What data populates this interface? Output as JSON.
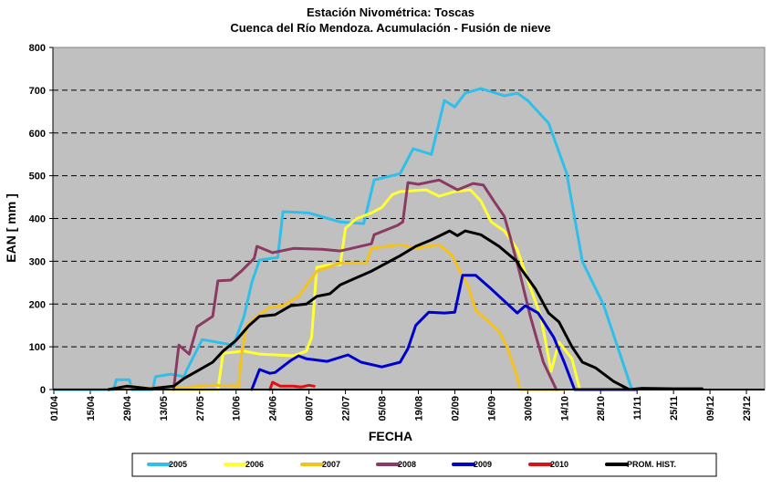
{
  "chart_data": {
    "type": "line",
    "title": "Estación Nivométrica: Toscas",
    "subtitle": "Cuenca del Río Mendoza. Acumulación - Fusión de nieve",
    "xlabel": "FECHA",
    "ylabel": "EAN [ mm ]",
    "ylim": [
      0,
      800
    ],
    "yticks": [
      0,
      100,
      200,
      300,
      400,
      500,
      600,
      700,
      800
    ],
    "xticks": [
      "01/04",
      "15/04",
      "29/04",
      "13/05",
      "27/05",
      "10/06",
      "24/06",
      "08/07",
      "22/07",
      "05/08",
      "19/08",
      "02/09",
      "16/09",
      "30/09",
      "14/10",
      "28/10",
      "11/11",
      "25/11",
      "09/12",
      "23/12"
    ],
    "xlim": [
      "01/04",
      "30/12"
    ],
    "grid": "horizontal dashed",
    "plot_background": "#c0c0c0",
    "legend_position": "bottom",
    "series": [
      {
        "name": "2005",
        "color": "#2fbfea",
        "points": [
          [
            "01/04",
            0
          ],
          [
            "24/04",
            0
          ],
          [
            "25/04",
            23
          ],
          [
            "30/04",
            23
          ],
          [
            "01/05",
            0
          ],
          [
            "09/05",
            0
          ],
          [
            "10/05",
            30
          ],
          [
            "16/05",
            36
          ],
          [
            "21/05",
            30
          ],
          [
            "22/05",
            45
          ],
          [
            "28/05",
            117
          ],
          [
            "09/06",
            104
          ],
          [
            "13/06",
            170
          ],
          [
            "16/06",
            250
          ],
          [
            "19/06",
            303
          ],
          [
            "26/06",
            309
          ],
          [
            "28/06",
            416
          ],
          [
            "08/07",
            413
          ],
          [
            "20/07",
            392
          ],
          [
            "29/07",
            388
          ],
          [
            "02/08",
            490
          ],
          [
            "12/08",
            505
          ],
          [
            "17/08",
            563
          ],
          [
            "24/08",
            550
          ],
          [
            "29/08",
            676
          ],
          [
            "02/09",
            661
          ],
          [
            "06/09",
            693
          ],
          [
            "12/09",
            704
          ],
          [
            "21/09",
            687
          ],
          [
            "26/09",
            693
          ],
          [
            "30/09",
            676
          ],
          [
            "08/10",
            623
          ],
          [
            "15/10",
            505
          ],
          [
            "21/10",
            299
          ],
          [
            "29/10",
            200
          ],
          [
            "09/11",
            0
          ]
        ]
      },
      {
        "name": "2006",
        "color": "#ffff33",
        "points": [
          [
            "15/05",
            0
          ],
          [
            "03/06",
            0
          ],
          [
            "05/06",
            85
          ],
          [
            "13/06",
            90
          ],
          [
            "19/06",
            83
          ],
          [
            "02/07",
            79
          ],
          [
            "07/07",
            90
          ],
          [
            "09/07",
            122
          ],
          [
            "11/07",
            286
          ],
          [
            "16/07",
            292
          ],
          [
            "20/07",
            292
          ],
          [
            "22/07",
            377
          ],
          [
            "26/07",
            399
          ],
          [
            "01/08",
            413
          ],
          [
            "05/08",
            426
          ],
          [
            "09/08",
            456
          ],
          [
            "12/08",
            463
          ],
          [
            "22/08",
            467
          ],
          [
            "27/08",
            452
          ],
          [
            "02/09",
            463
          ],
          [
            "08/09",
            467
          ],
          [
            "12/09",
            441
          ],
          [
            "16/09",
            392
          ],
          [
            "21/09",
            371
          ],
          [
            "26/09",
            328
          ],
          [
            "30/09",
            256
          ],
          [
            "05/10",
            171
          ],
          [
            "09/10",
            43
          ],
          [
            "12/10",
            111
          ],
          [
            "17/10",
            72
          ],
          [
            "20/10",
            0
          ]
        ]
      },
      {
        "name": "2007",
        "color": "#f5c21b",
        "points": [
          [
            "25/04",
            0
          ],
          [
            "29/04",
            10
          ],
          [
            "05/05",
            3
          ],
          [
            "22/05",
            5
          ],
          [
            "01/06",
            10
          ],
          [
            "11/06",
            8
          ],
          [
            "12/06",
            79
          ],
          [
            "14/06",
            150
          ],
          [
            "18/06",
            171
          ],
          [
            "23/06",
            192
          ],
          [
            "28/06",
            196
          ],
          [
            "04/07",
            218
          ],
          [
            "11/07",
            277
          ],
          [
            "20/07",
            296
          ],
          [
            "30/07",
            296
          ],
          [
            "01/08",
            330
          ],
          [
            "12/08",
            339
          ],
          [
            "18/08",
            330
          ],
          [
            "27/08",
            339
          ],
          [
            "01/09",
            313
          ],
          [
            "04/09",
            277
          ],
          [
            "07/09",
            243
          ],
          [
            "10/09",
            186
          ],
          [
            "19/09",
            136
          ],
          [
            "22/09",
            100
          ],
          [
            "26/09",
            30
          ],
          [
            "27/09",
            0
          ],
          [
            "14/10",
            0
          ]
        ]
      },
      {
        "name": "2008",
        "color": "#8b3a62",
        "points": [
          [
            "17/05",
            0
          ],
          [
            "19/05",
            104
          ],
          [
            "23/05",
            83
          ],
          [
            "26/05",
            147
          ],
          [
            "01/06",
            171
          ],
          [
            "03/06",
            254
          ],
          [
            "08/06",
            256
          ],
          [
            "12/06",
            277
          ],
          [
            "17/06",
            307
          ],
          [
            "18/06",
            335
          ],
          [
            "24/06",
            320
          ],
          [
            "02/07",
            330
          ],
          [
            "13/07",
            328
          ],
          [
            "20/07",
            324
          ],
          [
            "01/08",
            341
          ],
          [
            "02/08",
            362
          ],
          [
            "11/08",
            384
          ],
          [
            "13/08",
            392
          ],
          [
            "15/08",
            484
          ],
          [
            "19/08",
            480
          ],
          [
            "27/08",
            490
          ],
          [
            "03/09",
            467
          ],
          [
            "09/09",
            482
          ],
          [
            "13/09",
            478
          ],
          [
            "17/09",
            441
          ],
          [
            "21/09",
            405
          ],
          [
            "23/09",
            362
          ],
          [
            "27/09",
            271
          ],
          [
            "01/10",
            171
          ],
          [
            "06/10",
            64
          ],
          [
            "11/10",
            0
          ]
        ]
      },
      {
        "name": "2009",
        "color": "#0000cc",
        "points": [
          [
            "16/06",
            0
          ],
          [
            "19/06",
            47
          ],
          [
            "23/06",
            38
          ],
          [
            "25/06",
            40
          ],
          [
            "01/07",
            68
          ],
          [
            "04/07",
            79
          ],
          [
            "07/07",
            72
          ],
          [
            "15/07",
            66
          ],
          [
            "23/07",
            81
          ],
          [
            "28/07",
            64
          ],
          [
            "05/08",
            53
          ],
          [
            "12/08",
            64
          ],
          [
            "15/08",
            96
          ],
          [
            "18/08",
            150
          ],
          [
            "23/08",
            181
          ],
          [
            "29/08",
            179
          ],
          [
            "02/09",
            181
          ],
          [
            "05/09",
            267
          ],
          [
            "10/09",
            267
          ],
          [
            "16/09",
            235
          ],
          [
            "26/09",
            179
          ],
          [
            "29/09",
            196
          ],
          [
            "04/10",
            179
          ],
          [
            "10/10",
            122
          ],
          [
            "14/10",
            64
          ],
          [
            "18/10",
            0
          ],
          [
            "11/11",
            0
          ]
        ]
      },
      {
        "name": "2010",
        "color": "#dd1111",
        "points": [
          [
            "23/06",
            0
          ],
          [
            "24/06",
            17
          ],
          [
            "27/06",
            8
          ],
          [
            "02/07",
            8
          ],
          [
            "05/07",
            6
          ],
          [
            "08/07",
            10
          ],
          [
            "10/07",
            8
          ]
        ]
      },
      {
        "name": "PROM. HIST.",
        "color": "#000000",
        "points": [
          [
            "22/04",
            0
          ],
          [
            "29/04",
            8
          ],
          [
            "08/05",
            2
          ],
          [
            "17/05",
            8
          ],
          [
            "21/05",
            26
          ],
          [
            "26/05",
            43
          ],
          [
            "01/06",
            64
          ],
          [
            "05/06",
            90
          ],
          [
            "10/06",
            115
          ],
          [
            "15/06",
            150
          ],
          [
            "19/06",
            171
          ],
          [
            "25/06",
            175
          ],
          [
            "01/07",
            196
          ],
          [
            "07/07",
            200
          ],
          [
            "11/07",
            218
          ],
          [
            "16/07",
            224
          ],
          [
            "20/07",
            245
          ],
          [
            "01/08",
            277
          ],
          [
            "12/08",
            313
          ],
          [
            "18/08",
            335
          ],
          [
            "24/08",
            350
          ],
          [
            "31/08",
            371
          ],
          [
            "03/09",
            360
          ],
          [
            "06/09",
            371
          ],
          [
            "12/09",
            362
          ],
          [
            "19/09",
            335
          ],
          [
            "26/09",
            299
          ],
          [
            "27/09",
            286
          ],
          [
            "03/10",
            235
          ],
          [
            "08/10",
            179
          ],
          [
            "12/10",
            158
          ],
          [
            "17/10",
            100
          ],
          [
            "21/10",
            64
          ],
          [
            "26/10",
            51
          ],
          [
            "02/11",
            19
          ],
          [
            "08/11",
            0
          ],
          [
            "13/11",
            3
          ],
          [
            "25/11",
            2
          ],
          [
            "06/12",
            2
          ]
        ]
      }
    ]
  }
}
